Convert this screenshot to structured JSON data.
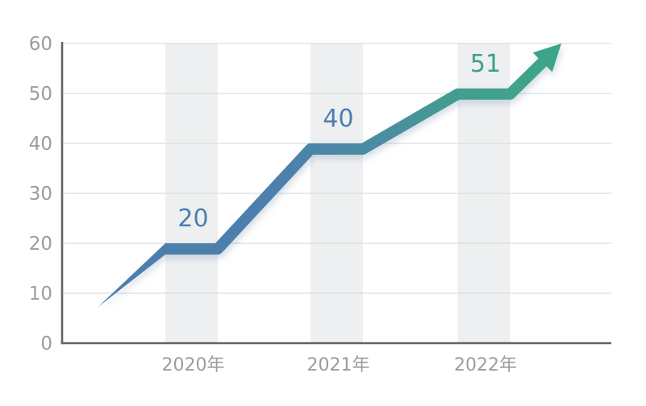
{
  "page": {
    "background": "#ffffff"
  },
  "chart_data": {
    "type": "line",
    "title": "",
    "xlabel": "",
    "ylabel": "",
    "categories": [
      "2020年",
      "2021年",
      "2022年"
    ],
    "values": [
      20,
      40,
      51
    ],
    "value_labels": [
      "20",
      "40",
      "51"
    ],
    "value_label_colors": [
      "#4d7fae",
      "#4d7fae",
      "#3aa189"
    ],
    "line_start_value": 7.5,
    "ylim": [
      0,
      60
    ],
    "yticks": [
      0,
      10,
      20,
      30,
      40,
      50,
      60
    ],
    "grid": "horizontal",
    "legend": "none",
    "trend_arrow": true,
    "highlight_bands_behind_categories": true,
    "colors": {
      "line_gradient_start": "#4d7fad",
      "line_gradient_mid": "#4b8da1",
      "line_gradient_end": "#3aa787",
      "arrow_head": "#3ca487",
      "axis_line": "#636363",
      "gridline": "#dcdddd",
      "band": "#edeff1",
      "tick_label": "#9c9c9c"
    }
  }
}
